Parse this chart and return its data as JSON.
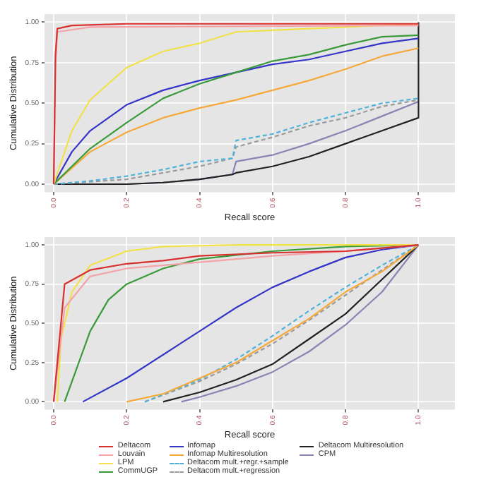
{
  "chart_data": [
    {
      "type": "line",
      "xlabel": "Recall score",
      "ylabel": "Cumulative Distribution",
      "xlim": [
        -0.025,
        1.1
      ],
      "ylim": [
        -0.05,
        1.05
      ],
      "xticks": [
        {
          "value": 0,
          "label": "0.0"
        },
        {
          "value": 0.2,
          "label": "0.2"
        },
        {
          "value": 0.4,
          "label": "0.4"
        },
        {
          "value": 0.6,
          "label": "0.6"
        },
        {
          "value": 0.8,
          "label": "0.8"
        },
        {
          "value": 1,
          "label": "1.0"
        }
      ],
      "yticks": [
        {
          "value": 0,
          "label": "0.00"
        },
        {
          "value": 0.25,
          "label": "0.25"
        },
        {
          "value": 0.5,
          "label": "0.50"
        },
        {
          "value": 0.75,
          "label": "0.75"
        },
        {
          "value": 1,
          "label": "1.00"
        }
      ],
      "grid": true,
      "legend": false,
      "marker": "none",
      "series": [
        {
          "color": "#d7302f",
          "x": [
            0,
            0.005,
            0.01,
            0.05,
            0.2,
            1.0
          ],
          "values": [
            0,
            0.8,
            0.96,
            0.98,
            0.99,
            0.99
          ]
        },
        {
          "color": "#f4a3a8",
          "x": [
            0,
            0.005,
            0.01,
            0.1,
            1.0
          ],
          "values": [
            0,
            0.75,
            0.94,
            0.97,
            0.98
          ]
        },
        {
          "color": "#f2e14a",
          "x": [
            0,
            0.05,
            0.1,
            0.2,
            0.3,
            0.4,
            0.5,
            0.6,
            0.8,
            1.0
          ],
          "values": [
            0,
            0.33,
            0.52,
            0.72,
            0.82,
            0.87,
            0.94,
            0.95,
            0.97,
            0.99
          ]
        },
        {
          "color": "#3a9a3a",
          "x": [
            0,
            0.1,
            0.2,
            0.3,
            0.4,
            0.5,
            0.6,
            0.7,
            0.8,
            0.9,
            1.0
          ],
          "values": [
            0,
            0.22,
            0.38,
            0.53,
            0.62,
            0.69,
            0.76,
            0.8,
            0.86,
            0.91,
            0.92
          ]
        },
        {
          "color": "#3535c8",
          "x": [
            0,
            0.05,
            0.1,
            0.2,
            0.3,
            0.4,
            0.5,
            0.6,
            0.7,
            0.8,
            0.9,
            1.0
          ],
          "values": [
            0,
            0.2,
            0.33,
            0.49,
            0.58,
            0.64,
            0.69,
            0.74,
            0.77,
            0.82,
            0.87,
            0.9
          ]
        },
        {
          "color": "#f5a93a",
          "x": [
            0,
            0.1,
            0.2,
            0.3,
            0.4,
            0.5,
            0.6,
            0.7,
            0.8,
            0.9,
            1.0
          ],
          "values": [
            0,
            0.2,
            0.32,
            0.41,
            0.47,
            0.52,
            0.58,
            0.64,
            0.71,
            0.79,
            0.84
          ]
        },
        {
          "color": "#4fb3d9",
          "line_style": "dashed",
          "x": [
            0,
            0.1,
            0.2,
            0.3,
            0.4,
            0.49,
            0.5,
            0.6,
            0.7,
            0.8,
            0.9,
            1.0
          ],
          "values": [
            0,
            0.02,
            0.05,
            0.09,
            0.14,
            0.16,
            0.27,
            0.31,
            0.38,
            0.44,
            0.5,
            0.53
          ]
        },
        {
          "color": "#9a9a9a",
          "line_style": "dashed",
          "x": [
            0,
            0.2,
            0.3,
            0.4,
            0.49,
            0.5,
            0.6,
            0.7,
            0.8,
            0.9,
            1.0
          ],
          "values": [
            0,
            0.03,
            0.07,
            0.11,
            0.16,
            0.23,
            0.29,
            0.36,
            0.41,
            0.48,
            0.52
          ]
        },
        {
          "color": "#222222",
          "x": [
            0,
            0.2,
            0.3,
            0.4,
            0.49,
            0.5,
            0.6,
            0.7,
            0.8,
            0.9,
            1.0,
            1.0
          ],
          "values": [
            0,
            0,
            0.01,
            0.03,
            0.06,
            0.07,
            0.11,
            0.17,
            0.25,
            0.33,
            0.41,
            1.0
          ]
        },
        {
          "color": "#8c82b4",
          "x": [
            0,
            0.2,
            0.3,
            0.4,
            0.49,
            0.5,
            0.6,
            0.7,
            0.8,
            0.9,
            1.0
          ],
          "values": [
            0,
            0,
            0.01,
            0.03,
            0.06,
            0.14,
            0.18,
            0.25,
            0.33,
            0.42,
            0.51
          ]
        }
      ]
    },
    {
      "type": "line",
      "xlabel": "Recall score",
      "ylabel": "Cumulative Distribution",
      "xlim": [
        -0.025,
        1.1
      ],
      "ylim": [
        -0.05,
        1.05
      ],
      "xticks": [
        {
          "value": 0,
          "label": "0.0"
        },
        {
          "value": 0.2,
          "label": "0.2"
        },
        {
          "value": 0.4,
          "label": "0.4"
        },
        {
          "value": 0.6,
          "label": "0.6"
        },
        {
          "value": 0.8,
          "label": "0.8"
        },
        {
          "value": 1,
          "label": "1.0"
        }
      ],
      "yticks": [
        {
          "value": 0,
          "label": "0.00"
        },
        {
          "value": 0.25,
          "label": "0.25"
        },
        {
          "value": 0.5,
          "label": "0.50"
        },
        {
          "value": 0.75,
          "label": "0.75"
        },
        {
          "value": 1,
          "label": "1.00"
        }
      ],
      "grid": true,
      "legend": "bottom",
      "marker": "none",
      "series": [
        {
          "name": "Deltacom",
          "color": "#d7302f",
          "x": [
            0,
            0.02,
            0.03,
            0.1,
            0.2,
            0.3,
            0.4,
            0.6,
            0.8,
            1.0
          ],
          "values": [
            0,
            0.5,
            0.75,
            0.84,
            0.88,
            0.9,
            0.93,
            0.95,
            0.96,
            1.0
          ]
        },
        {
          "name": "Louvain",
          "color": "#f4a3a8",
          "x": [
            0,
            0.03,
            0.1,
            0.2,
            0.4,
            0.6,
            0.8,
            1.0
          ],
          "values": [
            0,
            0.6,
            0.8,
            0.85,
            0.89,
            0.93,
            0.96,
            1.0
          ]
        },
        {
          "name": "LPM",
          "color": "#f2e14a",
          "x": [
            0.01,
            0.02,
            0.05,
            0.1,
            0.2,
            0.3,
            0.5,
            1.0
          ],
          "values": [
            0,
            0.4,
            0.7,
            0.87,
            0.96,
            0.99,
            1.0,
            1.0
          ]
        },
        {
          "name": "CommUGP",
          "color": "#3a9a3a",
          "x": [
            0.03,
            0.1,
            0.15,
            0.2,
            0.3,
            0.4,
            0.6,
            0.8,
            1.0
          ],
          "values": [
            0,
            0.45,
            0.65,
            0.75,
            0.85,
            0.91,
            0.96,
            0.99,
            1.0
          ]
        },
        {
          "name": "Infomap",
          "color": "#3535c8",
          "x": [
            0.08,
            0.2,
            0.3,
            0.4,
            0.5,
            0.6,
            0.7,
            0.8,
            0.9,
            1.0
          ],
          "values": [
            0,
            0.15,
            0.3,
            0.45,
            0.6,
            0.73,
            0.83,
            0.92,
            0.97,
            1.0
          ]
        },
        {
          "name": "Infomap Multiresolution",
          "color": "#f5a93a",
          "x": [
            0.2,
            0.3,
            0.4,
            0.5,
            0.6,
            0.7,
            0.8,
            0.9,
            1.0
          ],
          "values": [
            0,
            0.05,
            0.15,
            0.25,
            0.39,
            0.53,
            0.7,
            0.83,
            1.0
          ]
        },
        {
          "name": "Deltacom mult.+regr.+sample",
          "color": "#4fb3d9",
          "line_style": "dashed",
          "x": [
            0.25,
            0.4,
            0.5,
            0.6,
            0.7,
            0.8,
            0.9,
            1.0
          ],
          "values": [
            0,
            0.14,
            0.27,
            0.42,
            0.58,
            0.73,
            0.87,
            1.0
          ]
        },
        {
          "name": "Deltacom mult.+regression",
          "color": "#9a9a9a",
          "line_style": "dashed",
          "x": [
            0.25,
            0.4,
            0.5,
            0.6,
            0.7,
            0.8,
            0.9,
            1.0
          ],
          "values": [
            0,
            0.13,
            0.24,
            0.37,
            0.52,
            0.68,
            0.84,
            1.0
          ]
        },
        {
          "name": "Deltacom Multiresolution",
          "color": "#222222",
          "x": [
            0.3,
            0.4,
            0.5,
            0.6,
            0.7,
            0.8,
            0.9,
            1.0
          ],
          "values": [
            0,
            0.06,
            0.14,
            0.24,
            0.4,
            0.56,
            0.78,
            1.0
          ]
        },
        {
          "name": "CPM",
          "color": "#8c82b4",
          "x": [
            0.35,
            0.4,
            0.5,
            0.6,
            0.7,
            0.8,
            0.9,
            1.0
          ],
          "values": [
            0,
            0.03,
            0.1,
            0.19,
            0.32,
            0.49,
            0.7,
            1.0
          ]
        }
      ]
    }
  ]
}
